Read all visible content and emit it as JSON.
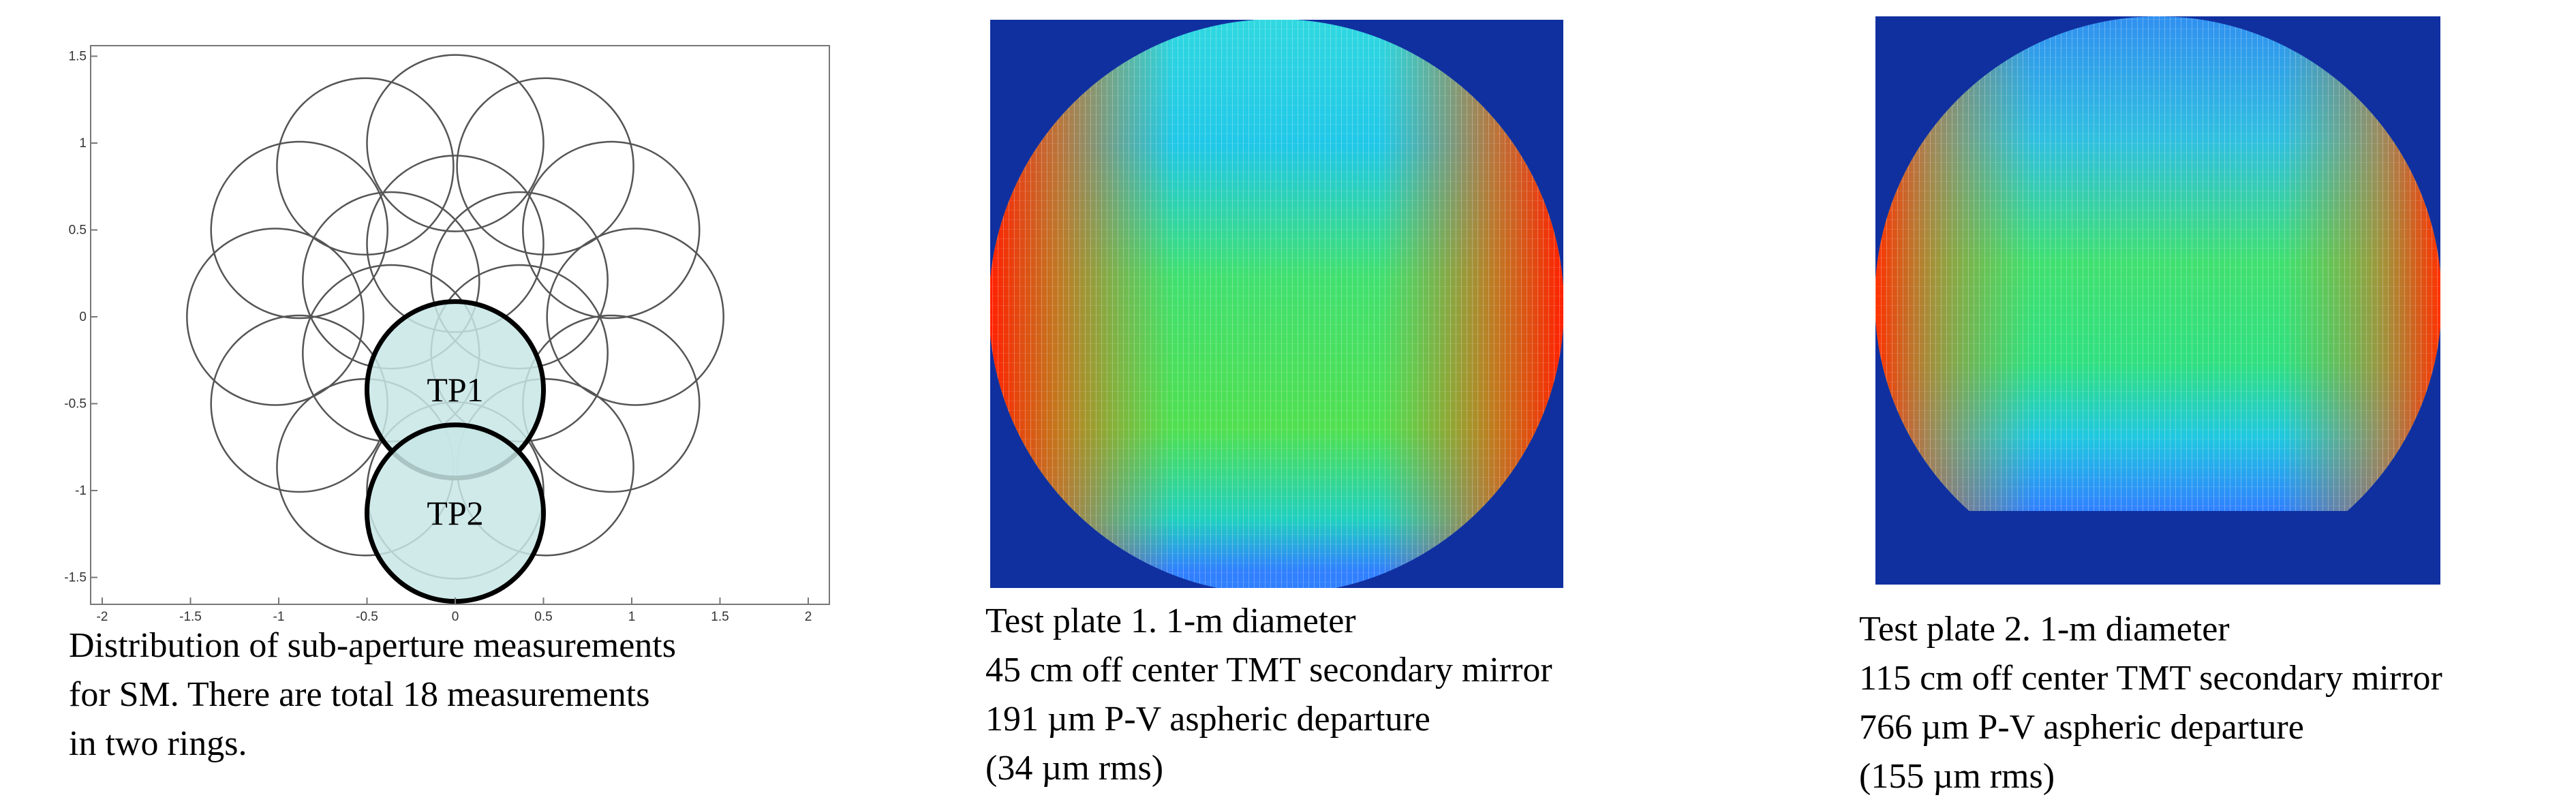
{
  "plot": {
    "x_ticks": [
      "-2",
      "-1.5",
      "-1",
      "-0.5",
      "0",
      "0.5",
      "1",
      "1.5",
      "2"
    ],
    "y_ticks": [
      "1.5",
      "1",
      "0.5",
      "0",
      "-0.5",
      "-1",
      "-1.5"
    ],
    "labels": [
      "TP1",
      "TP2"
    ]
  },
  "captions": {
    "left": [
      "Distribution of sub-aperture measurements",
      "for SM. There are total 18 measurements",
      "in two rings."
    ],
    "middle": [
      "Test plate 1.  1-m diameter",
      "45 cm off center TMT secondary mirror",
      "191 µm P-V aspheric departure",
      "(34 µm rms)"
    ],
    "right": [
      "Test plate 2.  1-m diameter",
      "115 cm off center TMT secondary mirror",
      "766 µm P-V aspheric departure",
      "(155 µm rms)"
    ]
  }
}
